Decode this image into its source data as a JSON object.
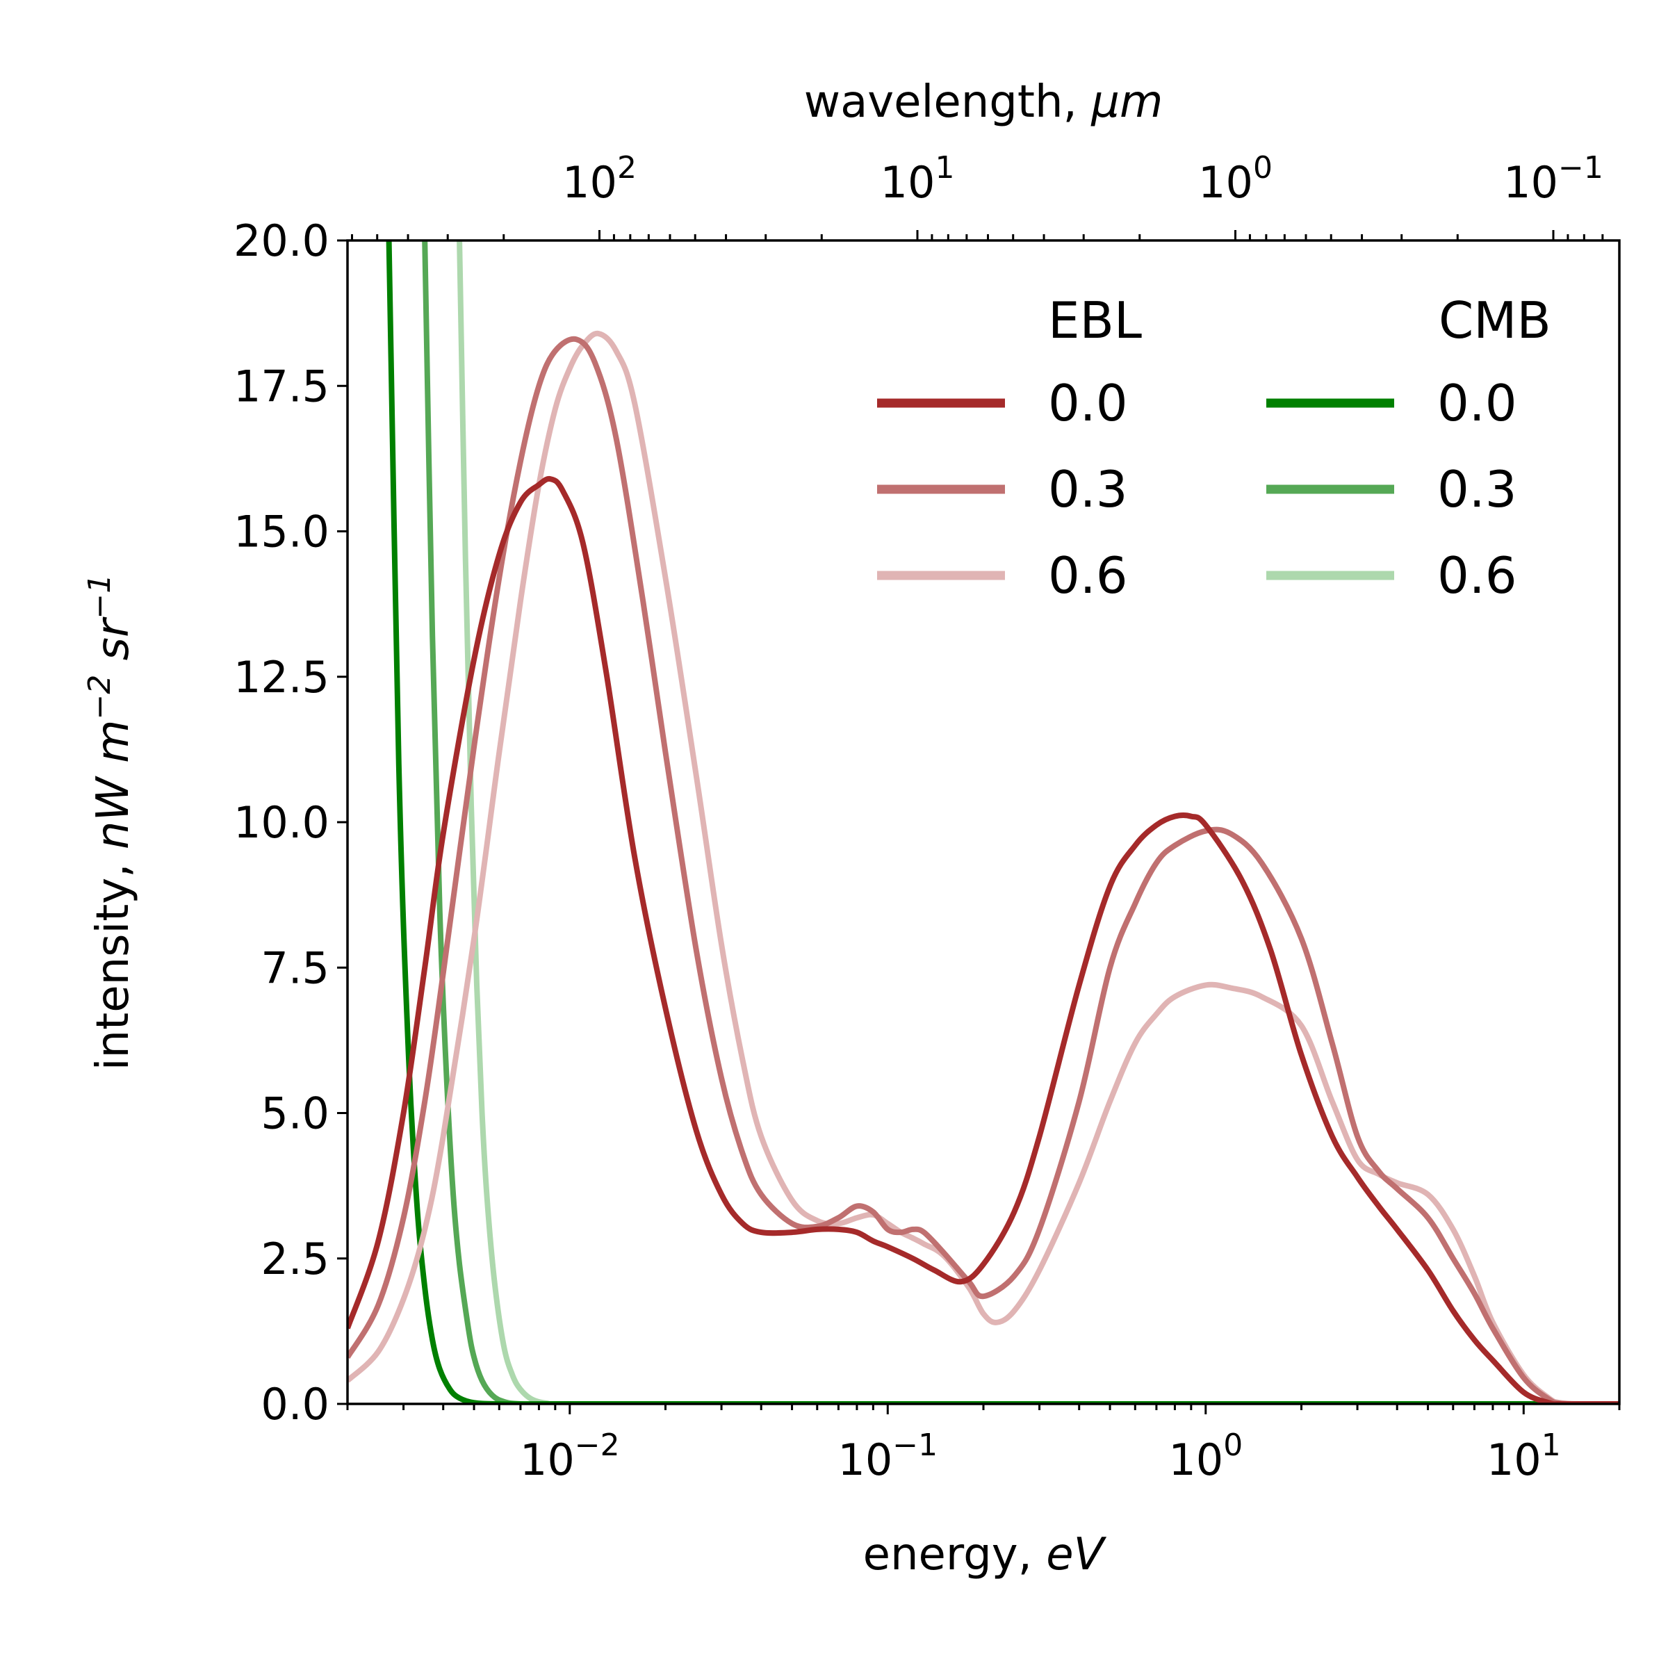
{
  "chart_data": {
    "type": "line",
    "xlabel_text": "energy, ",
    "xlabel_unit": "eV",
    "ylabel_text": "intensity, ",
    "ylabel_unit": "nW m",
    "ylabel_unit_exp1": "−2",
    "ylabel_unit_mid": " sr",
    "ylabel_unit_exp2": "−1",
    "top_xlabel_text": "wavelength, ",
    "top_xlabel_unit": "μm",
    "xscale": "log",
    "xlim": [
      0.002,
      20
    ],
    "ylim": [
      0,
      20
    ],
    "grid": false,
    "legend_placement": "top-right",
    "y_ticks": [
      "0.0",
      "2.5",
      "5.0",
      "7.5",
      "10.0",
      "12.5",
      "15.0",
      "17.5",
      "20.0"
    ],
    "x_ticks": [
      {
        "value": 0.01,
        "base": "10",
        "exp": "−2"
      },
      {
        "value": 0.1,
        "base": "10",
        "exp": "−1"
      },
      {
        "value": 1,
        "base": "10",
        "exp": "0"
      },
      {
        "value": 10,
        "base": "10",
        "exp": "1"
      }
    ],
    "top_ticks": [
      {
        "value": 100,
        "base": "10",
        "exp": "2"
      },
      {
        "value": 10,
        "base": "10",
        "exp": "1"
      },
      {
        "value": 1,
        "base": "10",
        "exp": "0"
      },
      {
        "value": 0.1,
        "base": "10",
        "exp": "−1"
      }
    ],
    "legend": {
      "ebl_title": "EBL",
      "cmb_title": "CMB"
    },
    "series": [
      {
        "name": "0.0",
        "group": "EBL",
        "color": "#a52a2a",
        "x": [
          0.002,
          0.0025,
          0.003,
          0.0035,
          0.004,
          0.005,
          0.006,
          0.007,
          0.008,
          0.0087,
          0.0095,
          0.011,
          0.013,
          0.016,
          0.02,
          0.025,
          0.03,
          0.035,
          0.04,
          0.05,
          0.06,
          0.07,
          0.08,
          0.09,
          0.1,
          0.12,
          0.14,
          0.17,
          0.2,
          0.25,
          0.3,
          0.4,
          0.5,
          0.6,
          0.7,
          0.8,
          0.9,
          1.0,
          1.3,
          1.6,
          2.0,
          2.5,
          3.0,
          3.5,
          4.0,
          5.0,
          6.0,
          7.0,
          8.0,
          10.0,
          12.0,
          13.0,
          15.0,
          20.0
        ],
        "y": [
          1.3,
          2.8,
          5.0,
          7.5,
          9.8,
          12.8,
          14.6,
          15.5,
          15.8,
          15.9,
          15.7,
          14.8,
          12.6,
          9.4,
          6.8,
          4.7,
          3.6,
          3.1,
          2.95,
          2.95,
          3.0,
          3.0,
          2.95,
          2.8,
          2.7,
          2.5,
          2.3,
          2.1,
          2.4,
          3.3,
          4.6,
          7.2,
          8.9,
          9.6,
          9.95,
          10.1,
          10.1,
          9.95,
          9.0,
          7.8,
          6.0,
          4.6,
          3.9,
          3.4,
          3.0,
          2.3,
          1.6,
          1.1,
          0.75,
          0.2,
          0.02,
          0.0,
          0.0,
          0.0
        ]
      },
      {
        "name": "0.3",
        "group": "EBL",
        "color": "#c07070",
        "x": [
          0.002,
          0.0025,
          0.003,
          0.0035,
          0.004,
          0.005,
          0.006,
          0.007,
          0.008,
          0.009,
          0.0105,
          0.012,
          0.014,
          0.017,
          0.02,
          0.025,
          0.03,
          0.035,
          0.04,
          0.05,
          0.06,
          0.07,
          0.08,
          0.09,
          0.1,
          0.11,
          0.12,
          0.13,
          0.15,
          0.18,
          0.2,
          0.25,
          0.3,
          0.4,
          0.5,
          0.6,
          0.7,
          0.8,
          1.0,
          1.2,
          1.5,
          2.0,
          2.5,
          3.0,
          3.5,
          4.0,
          5.0,
          6.0,
          7.0,
          8.0,
          10.0,
          12.0,
          13.0,
          15.0,
          20.0
        ],
        "y": [
          0.8,
          1.7,
          3.2,
          5.2,
          7.4,
          11.3,
          14.2,
          16.2,
          17.5,
          18.1,
          18.3,
          17.9,
          16.6,
          13.8,
          11.2,
          7.8,
          5.6,
          4.3,
          3.6,
          3.1,
          3.05,
          3.2,
          3.4,
          3.3,
          3.0,
          2.95,
          3.0,
          2.95,
          2.6,
          2.1,
          1.85,
          2.2,
          3.0,
          5.2,
          7.5,
          8.6,
          9.3,
          9.6,
          9.85,
          9.8,
          9.3,
          8.0,
          6.2,
          4.6,
          4.0,
          3.7,
          3.2,
          2.5,
          1.9,
          1.3,
          0.45,
          0.08,
          0.01,
          0.0,
          0.0
        ]
      },
      {
        "name": "0.6",
        "group": "EBL",
        "color": "#e0b4b4",
        "x": [
          0.002,
          0.0025,
          0.003,
          0.0035,
          0.004,
          0.005,
          0.006,
          0.007,
          0.008,
          0.009,
          0.01,
          0.011,
          0.0123,
          0.014,
          0.016,
          0.02,
          0.025,
          0.03,
          0.035,
          0.04,
          0.05,
          0.06,
          0.07,
          0.08,
          0.09,
          0.1,
          0.11,
          0.12,
          0.13,
          0.15,
          0.18,
          0.2,
          0.22,
          0.25,
          0.3,
          0.4,
          0.5,
          0.6,
          0.7,
          0.8,
          1.0,
          1.2,
          1.5,
          2.0,
          2.5,
          3.0,
          3.5,
          4.0,
          5.0,
          6.0,
          7.0,
          8.0,
          10.0,
          12.0,
          13.0,
          15.0,
          20.0
        ],
        "y": [
          0.4,
          0.9,
          1.8,
          3.0,
          4.6,
          8.0,
          11.2,
          13.8,
          15.8,
          17.1,
          17.8,
          18.2,
          18.4,
          18.1,
          17.2,
          14.2,
          10.8,
          7.9,
          5.9,
          4.6,
          3.5,
          3.15,
          3.1,
          3.2,
          3.25,
          3.1,
          2.95,
          2.85,
          2.75,
          2.55,
          2.0,
          1.55,
          1.4,
          1.6,
          2.3,
          3.8,
          5.2,
          6.2,
          6.7,
          7.0,
          7.2,
          7.15,
          7.0,
          6.5,
          5.2,
          4.2,
          3.95,
          3.8,
          3.6,
          3.0,
          2.2,
          1.4,
          0.5,
          0.1,
          0.02,
          0.0,
          0.0
        ]
      },
      {
        "name": "0.0",
        "group": "CMB",
        "color": "#008000",
        "x": [
          0.0027,
          0.0029,
          0.0031,
          0.0033,
          0.0035,
          0.0037,
          0.0039,
          0.0042,
          0.0045,
          0.005,
          0.006,
          0.01,
          0.1,
          1.0,
          20.0
        ],
        "y": [
          20.0,
          11.0,
          6.2,
          3.5,
          2.0,
          1.1,
          0.6,
          0.25,
          0.1,
          0.02,
          0.0,
          0.0,
          0.0,
          0.0,
          0.0
        ]
      },
      {
        "name": "0.3",
        "group": "CMB",
        "color": "#55a855",
        "x": [
          0.0035,
          0.0037,
          0.0039,
          0.0041,
          0.0043,
          0.0045,
          0.0048,
          0.005,
          0.0053,
          0.0057,
          0.0062,
          0.007,
          0.01,
          0.1,
          1.0,
          20.0
        ],
        "y": [
          20.0,
          13.2,
          8.5,
          5.6,
          3.6,
          2.4,
          1.3,
          0.8,
          0.4,
          0.15,
          0.04,
          0.0,
          0.0,
          0.0,
          0.0,
          0.0
        ]
      },
      {
        "name": "0.6",
        "group": "CMB",
        "color": "#add8ad",
        "x": [
          0.0045,
          0.0047,
          0.0049,
          0.0051,
          0.0053,
          0.0055,
          0.0058,
          0.0062,
          0.0066,
          0.007,
          0.0076,
          0.0085,
          0.01,
          0.1,
          1.0,
          20.0
        ],
        "y": [
          20.0,
          14.5,
          10.3,
          7.2,
          5.0,
          3.5,
          2.1,
          1.0,
          0.5,
          0.25,
          0.08,
          0.01,
          0.0,
          0.0,
          0.0,
          0.0
        ]
      }
    ]
  }
}
